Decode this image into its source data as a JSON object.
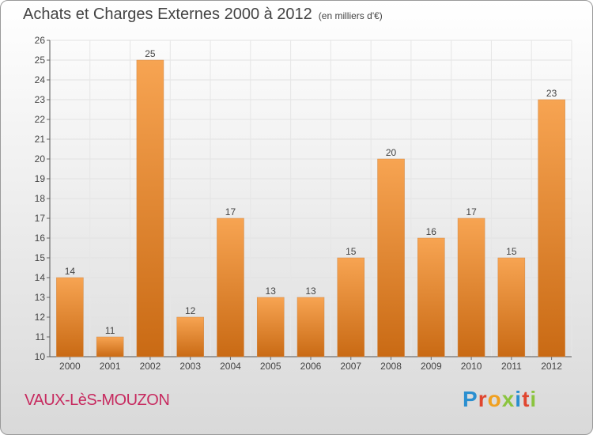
{
  "header": {
    "title": "Achats et Charges Externes 2000 à 2012",
    "subtitle": "(en milliers d'€)"
  },
  "footer": {
    "place": "VAUX-LèS-MOUZON",
    "logo_letters": [
      "P",
      "r",
      "o",
      "x",
      "i",
      "t",
      "i"
    ],
    "logo_colors": [
      "#2a8fd0",
      "#e0462f",
      "#f0a020",
      "#8bc43f",
      "#2a8fd0",
      "#e0462f",
      "#8bc43f"
    ]
  },
  "chart_data": {
    "type": "bar",
    "categories": [
      "2000",
      "2001",
      "2002",
      "2003",
      "2004",
      "2005",
      "2006",
      "2007",
      "2008",
      "2009",
      "2010",
      "2011",
      "2012"
    ],
    "values": [
      14,
      11,
      25,
      12,
      17,
      13,
      13,
      15,
      20,
      16,
      17,
      15,
      23
    ],
    "ylim": [
      10,
      26
    ],
    "yticks": [
      10,
      11,
      12,
      13,
      14,
      15,
      16,
      17,
      18,
      19,
      20,
      21,
      22,
      23,
      24,
      25,
      26
    ],
    "grid": true,
    "bar_color_light": "#f7a452",
    "bar_color_dark": "#c96a14"
  }
}
